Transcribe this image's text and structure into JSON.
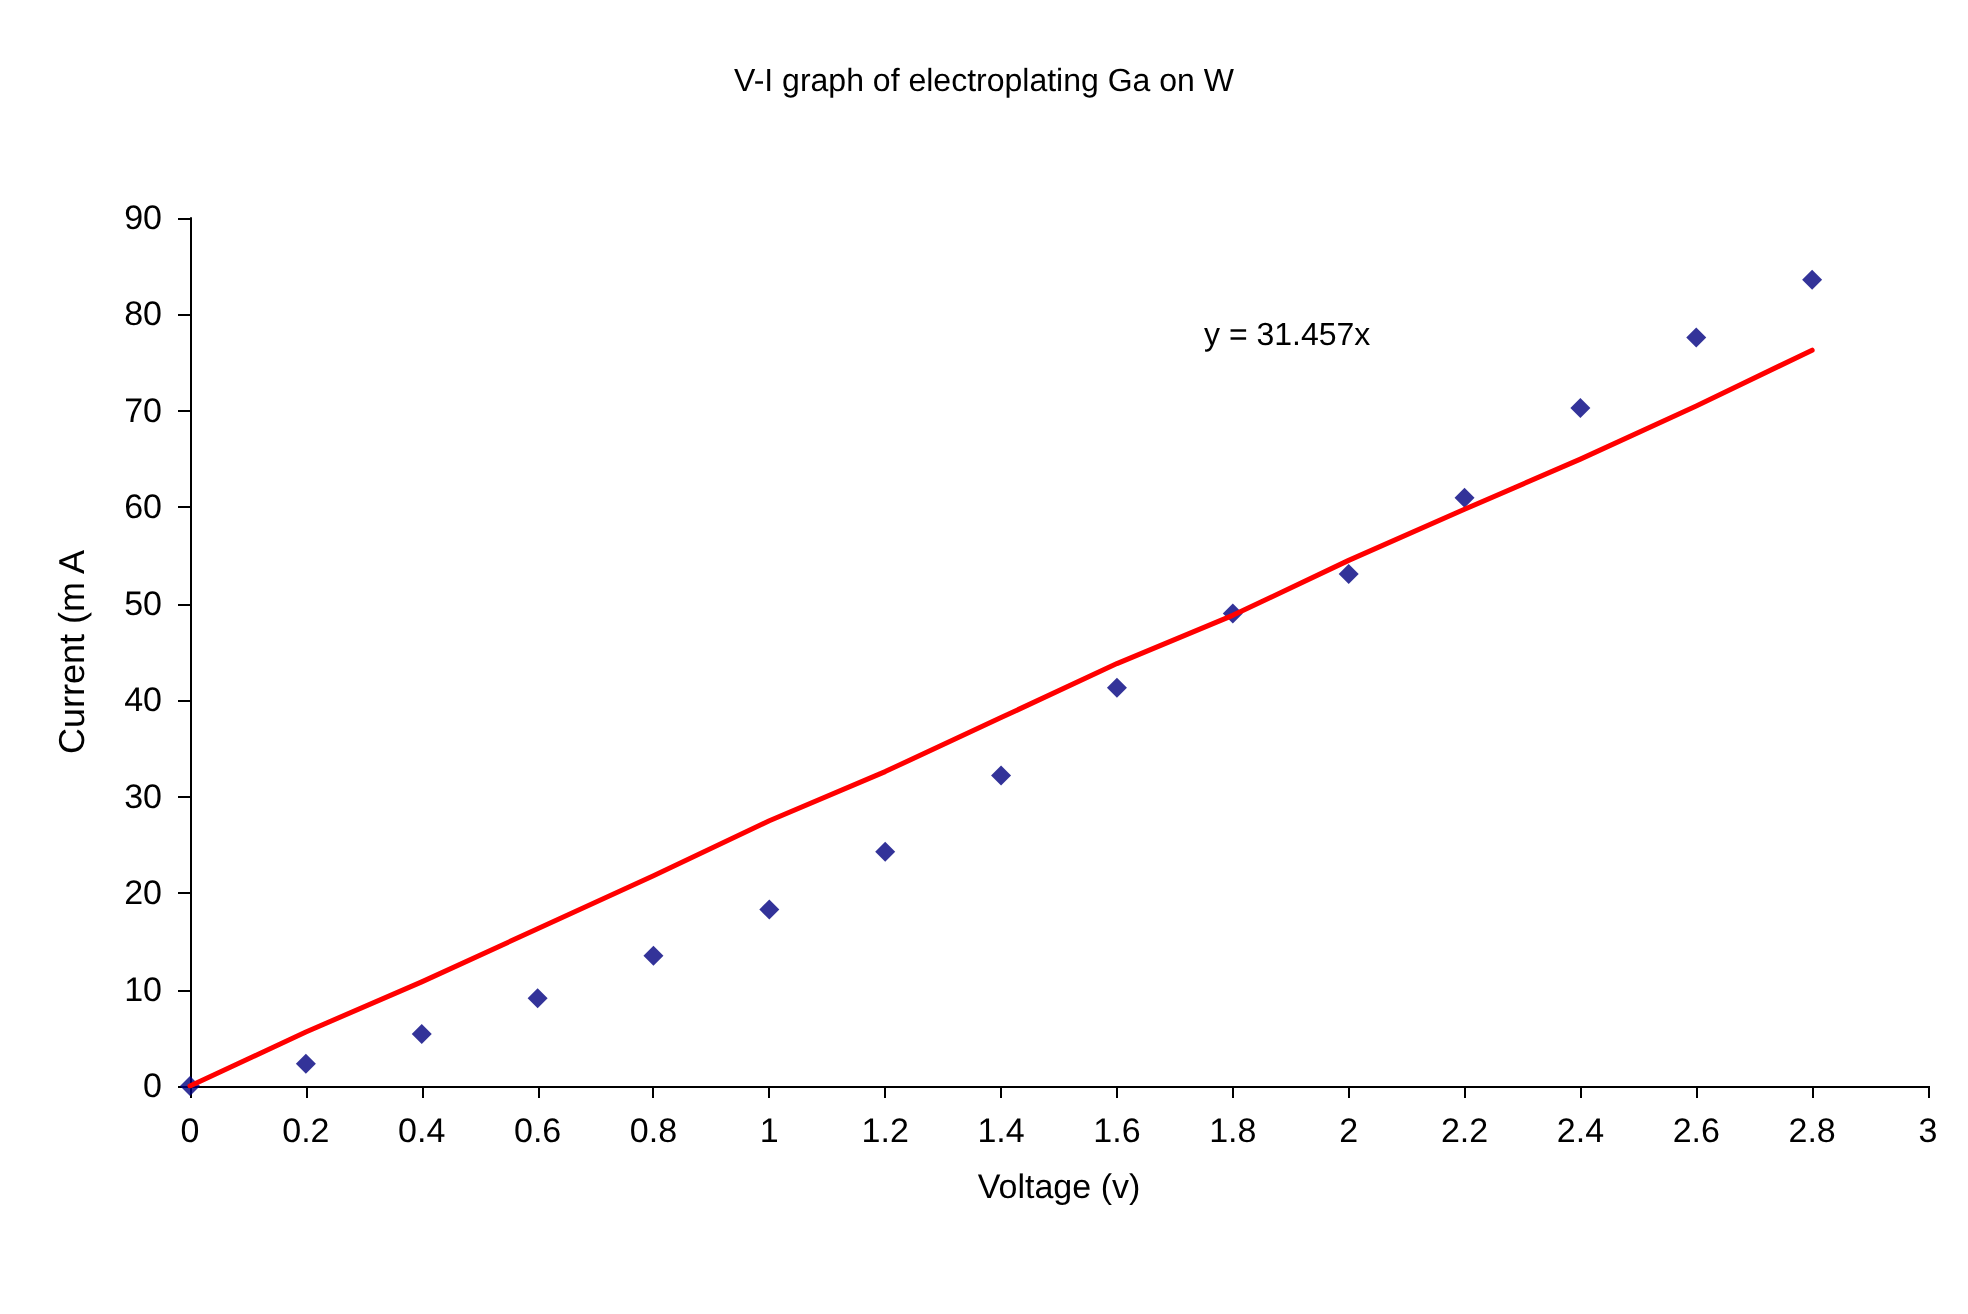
{
  "chart_data": {
    "type": "scatter",
    "title": "V-I graph of electroplating Ga on W",
    "xlabel": "Voltage (v)",
    "ylabel": "Current (m A",
    "annotations": [
      "y = 31.457x"
    ],
    "x": [
      0,
      0.2,
      0.4,
      0.6,
      0.8,
      1,
      1.2,
      1.4,
      1.6,
      1.8,
      2,
      2.2,
      2.4,
      2.6,
      2.8
    ],
    "series": [
      {
        "color": "#000080",
        "marker": "diamond",
        "values": [
          0,
          2.3,
          5.4,
          9.1,
          13.5,
          18.3,
          24.3,
          32.2,
          41.3,
          49,
          53.1,
          61,
          70.3,
          77.6,
          83.6
        ]
      },
      {
        "type": "line",
        "color": "#ff0000",
        "marker": "none",
        "line_style": "solid",
        "values": [
          0,
          5.6,
          10.8,
          16.3,
          21.8,
          27.5,
          32.6,
          38.2,
          43.8,
          48.8,
          54.5,
          59.8,
          65,
          70.5,
          76.3
        ]
      }
    ],
    "xlim": [
      0,
      3
    ],
    "xticks": [
      0,
      0.2,
      0.4,
      0.6,
      0.8,
      1,
      1.2,
      1.4,
      1.6,
      1.8,
      2,
      2.2,
      2.4,
      2.6,
      2.8,
      3
    ],
    "ylim": [
      0,
      90
    ],
    "yticks": [
      0,
      10,
      20,
      30,
      40,
      50,
      60,
      70,
      80,
      90
    ],
    "grid": false
  }
}
